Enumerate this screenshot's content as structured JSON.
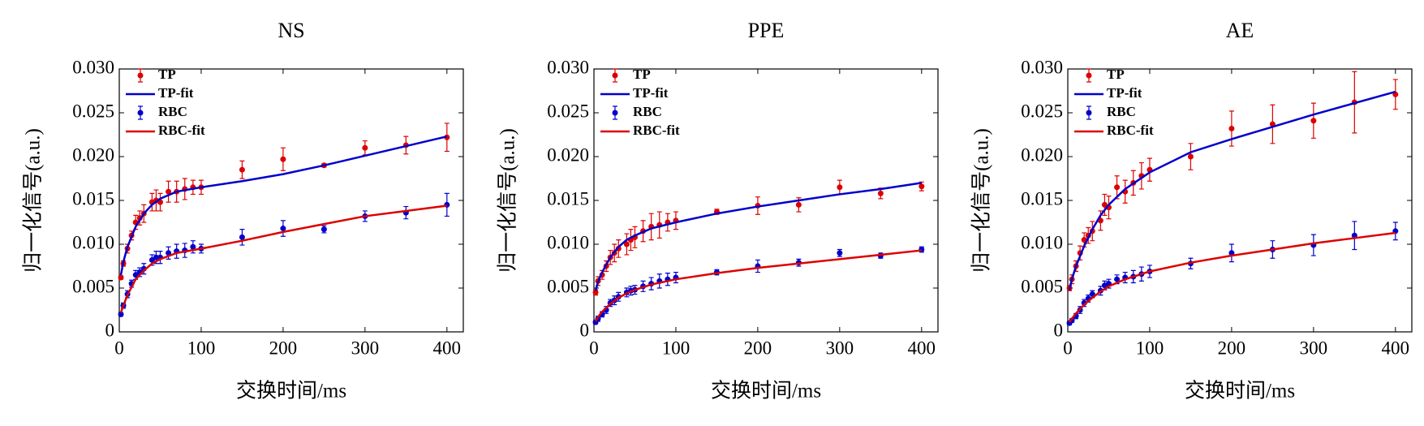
{
  "chart_data": [
    {
      "type": "scatter",
      "title": "NS",
      "xlabel": "交换时间/ms",
      "ylabel": "归一化信号(a.u.)",
      "xlim": [
        0,
        420
      ],
      "xticks": [
        0,
        100,
        200,
        300,
        400
      ],
      "ylim": [
        0,
        0.03
      ],
      "yticks": [
        0,
        0.005,
        {
          "value": 0.01,
          "label": "0.010"
        },
        0.015,
        {
          "value": 0.02,
          "label": "0.020"
        },
        0.025,
        {
          "value": 0.03,
          "label": "0.030"
        }
      ],
      "legend": "upper left",
      "series": [
        {
          "name": "TP",
          "style": "errorbar",
          "color": "#dd0000",
          "x": [
            2,
            5,
            10,
            15,
            20,
            25,
            30,
            40,
            45,
            50,
            60,
            70,
            80,
            90,
            100,
            150,
            200,
            250,
            300,
            350,
            400
          ],
          "values": [
            0.0062,
            0.0078,
            0.0095,
            0.011,
            0.0125,
            0.013,
            0.0135,
            0.0148,
            0.015,
            0.0148,
            0.016,
            0.016,
            0.0163,
            0.0165,
            0.0165,
            0.0185,
            0.0197,
            0.019,
            0.021,
            0.0213,
            0.0222
          ],
          "errors": [
            0.0002,
            0.0003,
            0.0005,
            0.0005,
            0.0008,
            0.0008,
            0.001,
            0.001,
            0.0012,
            0.001,
            0.0012,
            0.0012,
            0.0012,
            0.0008,
            0.0008,
            0.001,
            0.0013,
            0.0002,
            0.0008,
            0.001,
            0.0016
          ]
        },
        {
          "name": "TP-fit",
          "style": "line",
          "color": "#0000cc",
          "x": [
            2,
            5,
            10,
            20,
            30,
            40,
            50,
            70,
            100,
            150,
            200,
            250,
            300,
            350,
            400
          ],
          "values": [
            0.0065,
            0.008,
            0.0097,
            0.012,
            0.0135,
            0.0145,
            0.0152,
            0.016,
            0.0165,
            0.0172,
            0.018,
            0.019,
            0.0201,
            0.0212,
            0.0223
          ]
        },
        {
          "name": "RBC",
          "style": "errorbar",
          "color": "#0000cc",
          "x": [
            2,
            5,
            10,
            15,
            20,
            25,
            30,
            40,
            45,
            50,
            60,
            70,
            80,
            90,
            100,
            150,
            200,
            250,
            300,
            350,
            400
          ],
          "values": [
            0.002,
            0.003,
            0.0043,
            0.0055,
            0.0065,
            0.0068,
            0.0072,
            0.0082,
            0.0085,
            0.0085,
            0.009,
            0.0092,
            0.0093,
            0.0097,
            0.0095,
            0.0108,
            0.0118,
            0.0117,
            0.0132,
            0.0136,
            0.0145
          ],
          "errors": [
            0.0002,
            0.0003,
            0.0004,
            0.0004,
            0.0005,
            0.0005,
            0.0006,
            0.0006,
            0.0007,
            0.0007,
            0.0007,
            0.0008,
            0.0008,
            0.0007,
            0.0005,
            0.0009,
            0.0009,
            0.0004,
            0.0006,
            0.0007,
            0.0013
          ]
        },
        {
          "name": "RBC-fit",
          "style": "line",
          "color": "#dd0000",
          "x": [
            2,
            5,
            10,
            20,
            30,
            40,
            50,
            70,
            100,
            150,
            200,
            250,
            300,
            350,
            400
          ],
          "values": [
            0.0022,
            0.003,
            0.0042,
            0.006,
            0.007,
            0.0078,
            0.0083,
            0.009,
            0.0095,
            0.0104,
            0.0114,
            0.0123,
            0.0132,
            0.0138,
            0.0144
          ]
        }
      ]
    },
    {
      "type": "scatter",
      "title": "PPE",
      "xlabel": "交换时间/ms",
      "ylabel": "归一化信号(a.u.)",
      "xlim": [
        0,
        420
      ],
      "xticks": [
        0,
        100,
        200,
        300,
        400
      ],
      "ylim": [
        0,
        0.03
      ],
      "yticks": [
        0,
        0.005,
        {
          "value": 0.01,
          "label": "0.010"
        },
        0.015,
        {
          "value": 0.02,
          "label": "0.020"
        },
        0.025,
        {
          "value": 0.03,
          "label": "0.030"
        }
      ],
      "legend": "upper left",
      "series": [
        {
          "name": "TP",
          "style": "errorbar",
          "color": "#dd0000",
          "x": [
            2,
            5,
            10,
            15,
            20,
            25,
            30,
            40,
            45,
            50,
            60,
            70,
            80,
            90,
            100,
            150,
            200,
            250,
            300,
            350,
            400
          ],
          "values": [
            0.0045,
            0.0058,
            0.0065,
            0.0075,
            0.0085,
            0.009,
            0.0095,
            0.01,
            0.0105,
            0.0108,
            0.0115,
            0.012,
            0.0122,
            0.0125,
            0.0127,
            0.0137,
            0.0144,
            0.0145,
            0.0165,
            0.0158,
            0.0166
          ],
          "errors": [
            0.0003,
            0.0005,
            0.0005,
            0.0006,
            0.0008,
            0.001,
            0.001,
            0.0012,
            0.0012,
            0.0012,
            0.0012,
            0.0015,
            0.0015,
            0.001,
            0.001,
            0.0003,
            0.001,
            0.0008,
            0.0008,
            0.0006,
            0.0005
          ]
        },
        {
          "name": "TP-fit",
          "style": "line",
          "color": "#0000cc",
          "x": [
            2,
            5,
            10,
            20,
            30,
            40,
            50,
            70,
            100,
            150,
            200,
            250,
            300,
            350,
            400
          ],
          "values": [
            0.0047,
            0.0057,
            0.0068,
            0.0085,
            0.0097,
            0.0105,
            0.011,
            0.0118,
            0.0125,
            0.0135,
            0.0143,
            0.015,
            0.0157,
            0.0163,
            0.017
          ]
        },
        {
          "name": "RBC",
          "style": "errorbar",
          "color": "#0000cc",
          "x": [
            2,
            5,
            10,
            15,
            20,
            25,
            30,
            40,
            45,
            50,
            60,
            70,
            80,
            90,
            100,
            150,
            200,
            250,
            300,
            350,
            400
          ],
          "values": [
            0.0011,
            0.0015,
            0.002,
            0.0025,
            0.0033,
            0.0036,
            0.004,
            0.0045,
            0.0047,
            0.0048,
            0.0052,
            0.0055,
            0.0058,
            0.006,
            0.0062,
            0.0068,
            0.0075,
            0.0079,
            0.009,
            0.0087,
            0.0094
          ],
          "errors": [
            0.0002,
            0.0003,
            0.0003,
            0.0004,
            0.0004,
            0.0005,
            0.0005,
            0.0005,
            0.0005,
            0.0005,
            0.0006,
            0.0007,
            0.0008,
            0.0007,
            0.0006,
            0.0003,
            0.0007,
            0.0004,
            0.0004,
            0.0003,
            0.0003
          ]
        },
        {
          "name": "RBC-fit",
          "style": "line",
          "color": "#dd0000",
          "x": [
            2,
            5,
            10,
            20,
            30,
            40,
            50,
            70,
            100,
            150,
            200,
            250,
            300,
            350,
            400
          ],
          "values": [
            0.0012,
            0.0017,
            0.0023,
            0.0032,
            0.0039,
            0.0044,
            0.0048,
            0.0054,
            0.006,
            0.0067,
            0.0073,
            0.0078,
            0.0083,
            0.0088,
            0.0093
          ]
        }
      ]
    },
    {
      "type": "scatter",
      "title": "AE",
      "xlabel": "交换时间/ms",
      "ylabel": "归一化信号(a.u.)",
      "xlim": [
        0,
        420
      ],
      "xticks": [
        0,
        100,
        200,
        300,
        400
      ],
      "ylim": [
        0,
        0.03
      ],
      "yticks": [
        0,
        0.005,
        {
          "value": 0.01,
          "label": "0.010"
        },
        0.015,
        {
          "value": 0.02,
          "label": "0.020"
        },
        0.025,
        {
          "value": 0.03,
          "label": "0.030"
        }
      ],
      "legend": "upper left",
      "series": [
        {
          "name": "TP",
          "style": "errorbar",
          "color": "#dd0000",
          "x": [
            2,
            5,
            10,
            15,
            20,
            25,
            30,
            40,
            45,
            50,
            60,
            70,
            80,
            90,
            100,
            150,
            200,
            250,
            300,
            350,
            400
          ],
          "values": [
            0.005,
            0.006,
            0.0075,
            0.009,
            0.0105,
            0.011,
            0.0115,
            0.0127,
            0.0145,
            0.0142,
            0.0165,
            0.016,
            0.017,
            0.0178,
            0.0185,
            0.02,
            0.0232,
            0.0237,
            0.0241,
            0.0262,
            0.0271
          ],
          "errors": [
            0.0003,
            0.0005,
            0.0006,
            0.0008,
            0.0008,
            0.0009,
            0.0011,
            0.0011,
            0.0012,
            0.0013,
            0.0013,
            0.0013,
            0.0014,
            0.0015,
            0.0013,
            0.0015,
            0.002,
            0.0022,
            0.002,
            0.0035,
            0.0017
          ]
        },
        {
          "name": "TP-fit",
          "style": "line",
          "color": "#0000cc",
          "x": [
            2,
            5,
            10,
            20,
            30,
            40,
            50,
            70,
            100,
            150,
            200,
            250,
            300,
            350,
            400
          ],
          "values": [
            0.0048,
            0.006,
            0.0075,
            0.0098,
            0.0117,
            0.0133,
            0.0145,
            0.0163,
            0.0182,
            0.0205,
            0.022,
            0.0234,
            0.0248,
            0.0261,
            0.0274
          ]
        },
        {
          "name": "RBC",
          "style": "errorbar",
          "color": "#0000cc",
          "x": [
            2,
            5,
            10,
            15,
            20,
            25,
            30,
            40,
            45,
            50,
            60,
            70,
            80,
            90,
            100,
            150,
            200,
            250,
            300,
            350,
            400
          ],
          "values": [
            0.001,
            0.0013,
            0.0018,
            0.0025,
            0.0033,
            0.0038,
            0.0043,
            0.0047,
            0.0053,
            0.0055,
            0.006,
            0.0062,
            0.0063,
            0.0066,
            0.0069,
            0.0078,
            0.009,
            0.0094,
            0.0099,
            0.011,
            0.0115
          ],
          "errors": [
            0.0002,
            0.0002,
            0.0003,
            0.0004,
            0.0004,
            0.0004,
            0.0004,
            0.0005,
            0.0005,
            0.0005,
            0.0005,
            0.0006,
            0.0007,
            0.0008,
            0.0007,
            0.0006,
            0.001,
            0.001,
            0.0012,
            0.0016,
            0.001
          ]
        },
        {
          "name": "RBC-fit",
          "style": "line",
          "color": "#dd0000",
          "x": [
            2,
            5,
            10,
            20,
            30,
            40,
            50,
            70,
            100,
            150,
            200,
            250,
            300,
            350,
            400
          ],
          "values": [
            0.0011,
            0.0015,
            0.0021,
            0.0031,
            0.0039,
            0.0046,
            0.0052,
            0.006,
            0.0069,
            0.0079,
            0.0087,
            0.0094,
            0.0101,
            0.0107,
            0.0113
          ]
        }
      ]
    }
  ]
}
